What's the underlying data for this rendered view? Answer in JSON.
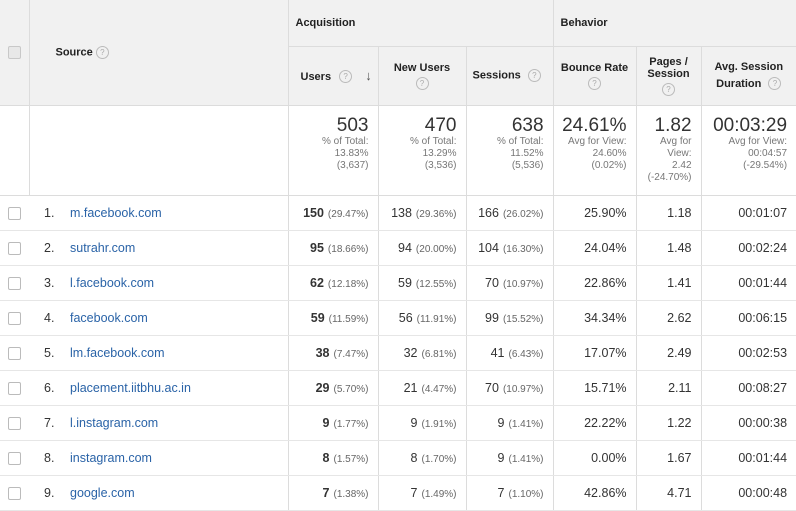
{
  "header": {
    "source": "Source",
    "acquisition": "Acquisition",
    "behavior": "Behavior",
    "users": "Users",
    "new_users": "New Users",
    "sessions": "Sessions",
    "bounce_rate": "Bounce Rate",
    "pages_session_1": "Pages /",
    "pages_session_2": "Session",
    "avg_session_1": "Avg. Session",
    "avg_session_2": "Duration",
    "help": "?",
    "sort": "↓"
  },
  "totals": {
    "users": {
      "value": "503",
      "l1": "% of Total:",
      "l2": "13.83%",
      "l3": "(3,637)"
    },
    "new_users": {
      "value": "470",
      "l1": "% of Total:",
      "l2": "13.29%",
      "l3": "(3,536)"
    },
    "sessions": {
      "value": "638",
      "l1": "% of Total:",
      "l2": "11.52%",
      "l3": "(5,536)"
    },
    "bounce_rate": {
      "value": "24.61%",
      "l1": "Avg for View:",
      "l2": "24.60%",
      "l3": "(0.02%)"
    },
    "pages_session": {
      "value": "1.82",
      "l1": "Avg for",
      "l2": "View:",
      "l3": "2.42",
      "l4": "(-24.70%)"
    },
    "avg_duration": {
      "value": "00:03:29",
      "l1": "Avg for View:",
      "l2": "00:04:57",
      "l3": "(-29.54%)"
    }
  },
  "rows": [
    {
      "idx": "1.",
      "source": "m.facebook.com",
      "users": "150",
      "users_pct": "(29.47%)",
      "new_users": "138",
      "new_users_pct": "(29.36%)",
      "sessions": "166",
      "sessions_pct": "(26.02%)",
      "bounce": "25.90%",
      "pages": "1.18",
      "duration": "00:01:07"
    },
    {
      "idx": "2.",
      "source": "sutrahr.com",
      "users": "95",
      "users_pct": "(18.66%)",
      "new_users": "94",
      "new_users_pct": "(20.00%)",
      "sessions": "104",
      "sessions_pct": "(16.30%)",
      "bounce": "24.04%",
      "pages": "1.48",
      "duration": "00:02:24"
    },
    {
      "idx": "3.",
      "source": "l.facebook.com",
      "users": "62",
      "users_pct": "(12.18%)",
      "new_users": "59",
      "new_users_pct": "(12.55%)",
      "sessions": "70",
      "sessions_pct": "(10.97%)",
      "bounce": "22.86%",
      "pages": "1.41",
      "duration": "00:01:44"
    },
    {
      "idx": "4.",
      "source": "facebook.com",
      "users": "59",
      "users_pct": "(11.59%)",
      "new_users": "56",
      "new_users_pct": "(11.91%)",
      "sessions": "99",
      "sessions_pct": "(15.52%)",
      "bounce": "34.34%",
      "pages": "2.62",
      "duration": "00:06:15"
    },
    {
      "idx": "5.",
      "source": "lm.facebook.com",
      "users": "38",
      "users_pct": "(7.47%)",
      "new_users": "32",
      "new_users_pct": "(6.81%)",
      "sessions": "41",
      "sessions_pct": "(6.43%)",
      "bounce": "17.07%",
      "pages": "2.49",
      "duration": "00:02:53"
    },
    {
      "idx": "6.",
      "source": "placement.iitbhu.ac.in",
      "users": "29",
      "users_pct": "(5.70%)",
      "new_users": "21",
      "new_users_pct": "(4.47%)",
      "sessions": "70",
      "sessions_pct": "(10.97%)",
      "bounce": "15.71%",
      "pages": "2.11",
      "duration": "00:08:27"
    },
    {
      "idx": "7.",
      "source": "l.instagram.com",
      "users": "9",
      "users_pct": "(1.77%)",
      "new_users": "9",
      "new_users_pct": "(1.91%)",
      "sessions": "9",
      "sessions_pct": "(1.41%)",
      "bounce": "22.22%",
      "pages": "1.22",
      "duration": "00:00:38"
    },
    {
      "idx": "8.",
      "source": "instagram.com",
      "users": "8",
      "users_pct": "(1.57%)",
      "new_users": "8",
      "new_users_pct": "(1.70%)",
      "sessions": "9",
      "sessions_pct": "(1.41%)",
      "bounce": "0.00%",
      "pages": "1.67",
      "duration": "00:01:44"
    },
    {
      "idx": "9.",
      "source": "google.com",
      "users": "7",
      "users_pct": "(1.38%)",
      "new_users": "7",
      "new_users_pct": "(1.49%)",
      "sessions": "7",
      "sessions_pct": "(1.10%)",
      "bounce": "42.86%",
      "pages": "4.71",
      "duration": "00:00:48"
    }
  ]
}
